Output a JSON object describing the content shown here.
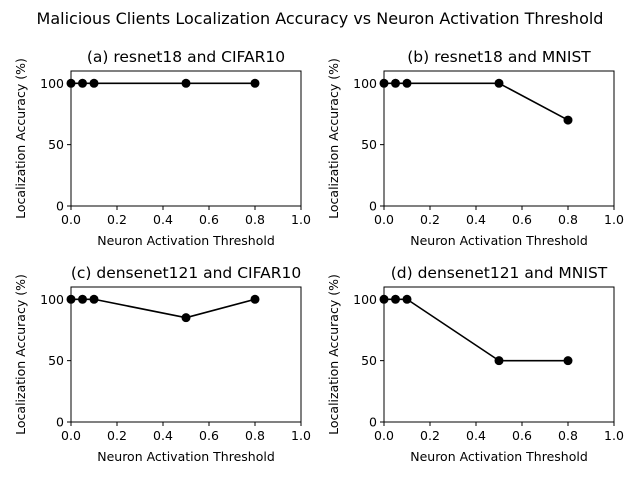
{
  "figure": {
    "title": "Malicious Clients Localization Accuracy vs Neuron Activation Threshold"
  },
  "chart_data": [
    {
      "type": "line",
      "title": "(a) resnet18 and CIFAR10",
      "xlabel": "Neuron Activation Threshold",
      "ylabel": "Localization Accuracy (%)",
      "xlim": [
        0,
        1
      ],
      "ylim": [
        0,
        110
      ],
      "xticks": [
        "0.0",
        "0.2",
        "0.4",
        "0.6",
        "0.8",
        "1.0"
      ],
      "yticks": [
        "0",
        "50",
        "100"
      ],
      "x": [
        0.0,
        0.05,
        0.1,
        0.5,
        0.8
      ],
      "y": [
        100,
        100,
        100,
        100,
        100
      ],
      "color": "#000000"
    },
    {
      "type": "line",
      "title": "(b) resnet18 and MNIST",
      "xlabel": "Neuron Activation Threshold",
      "ylabel": "Localization Accuracy (%)",
      "xlim": [
        0,
        1
      ],
      "ylim": [
        0,
        110
      ],
      "xticks": [
        "0.0",
        "0.2",
        "0.4",
        "0.6",
        "0.8",
        "1.0"
      ],
      "yticks": [
        "0",
        "50",
        "100"
      ],
      "x": [
        0.0,
        0.05,
        0.1,
        0.5,
        0.8
      ],
      "y": [
        100,
        100,
        100,
        100,
        70
      ],
      "color": "#000000"
    },
    {
      "type": "line",
      "title": "(c) densenet121 and CIFAR10",
      "xlabel": "Neuron Activation Threshold",
      "ylabel": "Localization Accuracy (%)",
      "xlim": [
        0,
        1
      ],
      "ylim": [
        0,
        110
      ],
      "xticks": [
        "0.0",
        "0.2",
        "0.4",
        "0.6",
        "0.8",
        "1.0"
      ],
      "yticks": [
        "0",
        "50",
        "100"
      ],
      "x": [
        0.0,
        0.05,
        0.1,
        0.5,
        0.8
      ],
      "y": [
        100,
        100,
        100,
        85,
        100
      ],
      "color": "#000000"
    },
    {
      "type": "line",
      "title": "(d) densenet121 and MNIST",
      "xlabel": "Neuron Activation Threshold",
      "ylabel": "Localization Accuracy (%)",
      "xlim": [
        0,
        1
      ],
      "ylim": [
        0,
        110
      ],
      "xticks": [
        "0.0",
        "0.2",
        "0.4",
        "0.6",
        "0.8",
        "1.0"
      ],
      "yticks": [
        "0",
        "50",
        "100"
      ],
      "x": [
        0.0,
        0.05,
        0.1,
        0.5,
        0.8
      ],
      "y": [
        100,
        100,
        100,
        50,
        50
      ],
      "color": "#000000"
    }
  ]
}
